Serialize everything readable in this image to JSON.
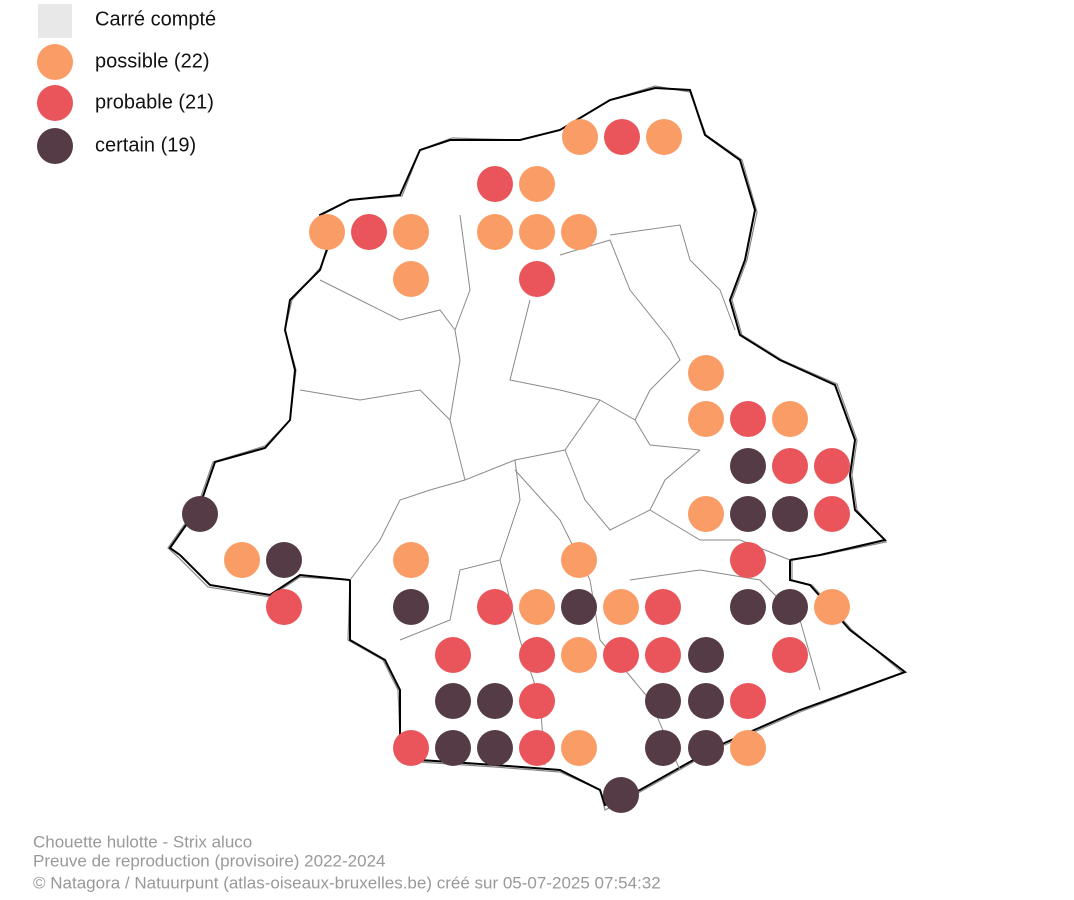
{
  "legend": {
    "items": [
      {
        "label": "Carré compté"
      },
      {
        "label": "possible (22)"
      },
      {
        "label": "probable (21)"
      },
      {
        "label": "certain (19)"
      }
    ]
  },
  "footer": {
    "lines": [
      "Chouette hulotte - Strix aluco",
      "Preuve de reproduction (provisoire) 2022-2024",
      "© Natagora / Natuurpunt (atlas-oiseaux-bruxelles.be) créé sur 05-07-2025 07:54:32"
    ]
  }
}
